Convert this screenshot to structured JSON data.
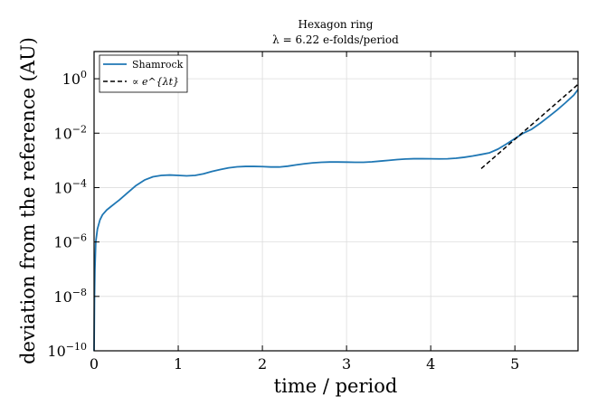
{
  "chart_data": {
    "type": "line",
    "title": "Hexagon ring",
    "subtitle": "λ = 6.22 e-folds/period",
    "xlabel": "time / period",
    "ylabel": "deviation from the reference (AU)",
    "xlim": [
      0,
      5.75
    ],
    "ylim": [
      1e-10,
      10
    ],
    "yscale": "log",
    "grid": true,
    "legend_position": "top-left",
    "x_ticks": [
      0,
      1,
      2,
      3,
      4,
      5
    ],
    "y_ticks": [
      {
        "base": "10",
        "exp": "−10",
        "value": 1e-10
      },
      {
        "base": "10",
        "exp": "−8",
        "value": 1e-08
      },
      {
        "base": "10",
        "exp": "−6",
        "value": 1e-06
      },
      {
        "base": "10",
        "exp": "−4",
        "value": 0.0001
      },
      {
        "base": "10",
        "exp": "−2",
        "value": 0.01
      },
      {
        "base": "10",
        "exp": "0",
        "value": 1
      }
    ],
    "series": [
      {
        "name": "Shamrock",
        "color": "#1f77b4",
        "style": "solid",
        "x": [
          0.0,
          0.005,
          0.01,
          0.02,
          0.04,
          0.07,
          0.1,
          0.15,
          0.2,
          0.3,
          0.4,
          0.5,
          0.6,
          0.7,
          0.8,
          0.9,
          1.0,
          1.1,
          1.2,
          1.3,
          1.4,
          1.5,
          1.6,
          1.7,
          1.8,
          1.9,
          2.0,
          2.1,
          2.2,
          2.3,
          2.4,
          2.5,
          2.6,
          2.7,
          2.8,
          2.9,
          3.0,
          3.1,
          3.2,
          3.3,
          3.4,
          3.5,
          3.6,
          3.7,
          3.8,
          3.9,
          4.0,
          4.1,
          4.2,
          4.3,
          4.4,
          4.5,
          4.6,
          4.7,
          4.8,
          4.9,
          5.0,
          5.1,
          5.2,
          5.3,
          5.4,
          5.5,
          5.6,
          5.7,
          5.75
        ],
        "y": [
          1e-10,
          1e-08,
          1e-07,
          1e-06,
          3e-06,
          6.5e-06,
          1e-05,
          1.5e-05,
          2e-05,
          3.5e-05,
          6.5e-05,
          0.00012,
          0.00019,
          0.00025,
          0.00028,
          0.00029,
          0.00028,
          0.00027,
          0.00028,
          0.00032,
          0.00039,
          0.00046,
          0.00053,
          0.00058,
          0.0006,
          0.0006,
          0.00059,
          0.00057,
          0.00057,
          0.00061,
          0.00068,
          0.00075,
          0.00081,
          0.00085,
          0.00087,
          0.00087,
          0.00086,
          0.00085,
          0.00085,
          0.00088,
          0.00094,
          0.001,
          0.00107,
          0.00112,
          0.00115,
          0.00115,
          0.00114,
          0.00113,
          0.00114,
          0.0012,
          0.0013,
          0.00145,
          0.00165,
          0.0019,
          0.0026,
          0.004,
          0.0063,
          0.01,
          0.014,
          0.023,
          0.04,
          0.07,
          0.13,
          0.25,
          0.4
        ]
      },
      {
        "name": "∝ e^{λt}",
        "color": "#000000",
        "style": "dashed",
        "x": [
          4.6,
          5.75
        ],
        "y": [
          0.0005,
          0.62
        ]
      }
    ]
  }
}
